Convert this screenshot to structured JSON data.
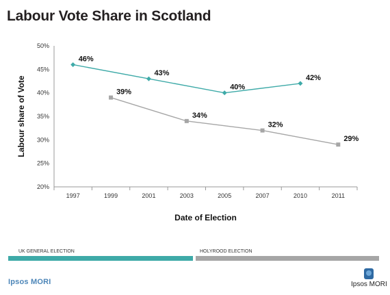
{
  "title": "Labour Vote Share in Scotland",
  "chart_data": {
    "type": "line",
    "title": "Labour Vote Share in Scotland",
    "xlabel": "Date of Election",
    "ylabel": "Labour share of Vote",
    "x_categories": [
      "1997",
      "1999",
      "2001",
      "2003",
      "2005",
      "2007",
      "2010",
      "2011"
    ],
    "y_ticks": [
      "20%",
      "25%",
      "30%",
      "35%",
      "40%",
      "45%",
      "50%"
    ],
    "ylim": [
      20,
      50
    ],
    "grid": false,
    "series": [
      {
        "color": "#3eaaa8",
        "marker": "diamond",
        "points": [
          {
            "x": "1997",
            "y": 46,
            "label": "46%"
          },
          {
            "x": "2001",
            "y": 43,
            "label": "43%"
          },
          {
            "x": "2005",
            "y": 40,
            "label": "40%"
          },
          {
            "x": "2010",
            "y": 42,
            "label": "42%"
          }
        ]
      },
      {
        "color": "#a6a6a6",
        "marker": "square",
        "points": [
          {
            "x": "1999",
            "y": 39,
            "label": "39%"
          },
          {
            "x": "2003",
            "y": 34,
            "label": "34%"
          },
          {
            "x": "2007",
            "y": 32,
            "label": "32%"
          },
          {
            "x": "2011",
            "y": 29,
            "label": "29%"
          }
        ]
      }
    ]
  },
  "legend_bars": {
    "general": {
      "label": "UK GENERAL ELECTION",
      "color": "#3eaaa8"
    },
    "holyrood": {
      "label": "HOLYROOD ELECTION",
      "color": "#a6a6a6"
    }
  },
  "footer": {
    "left_logo": "Ipsos MORI",
    "right_logo": "Ipsos MORI"
  }
}
